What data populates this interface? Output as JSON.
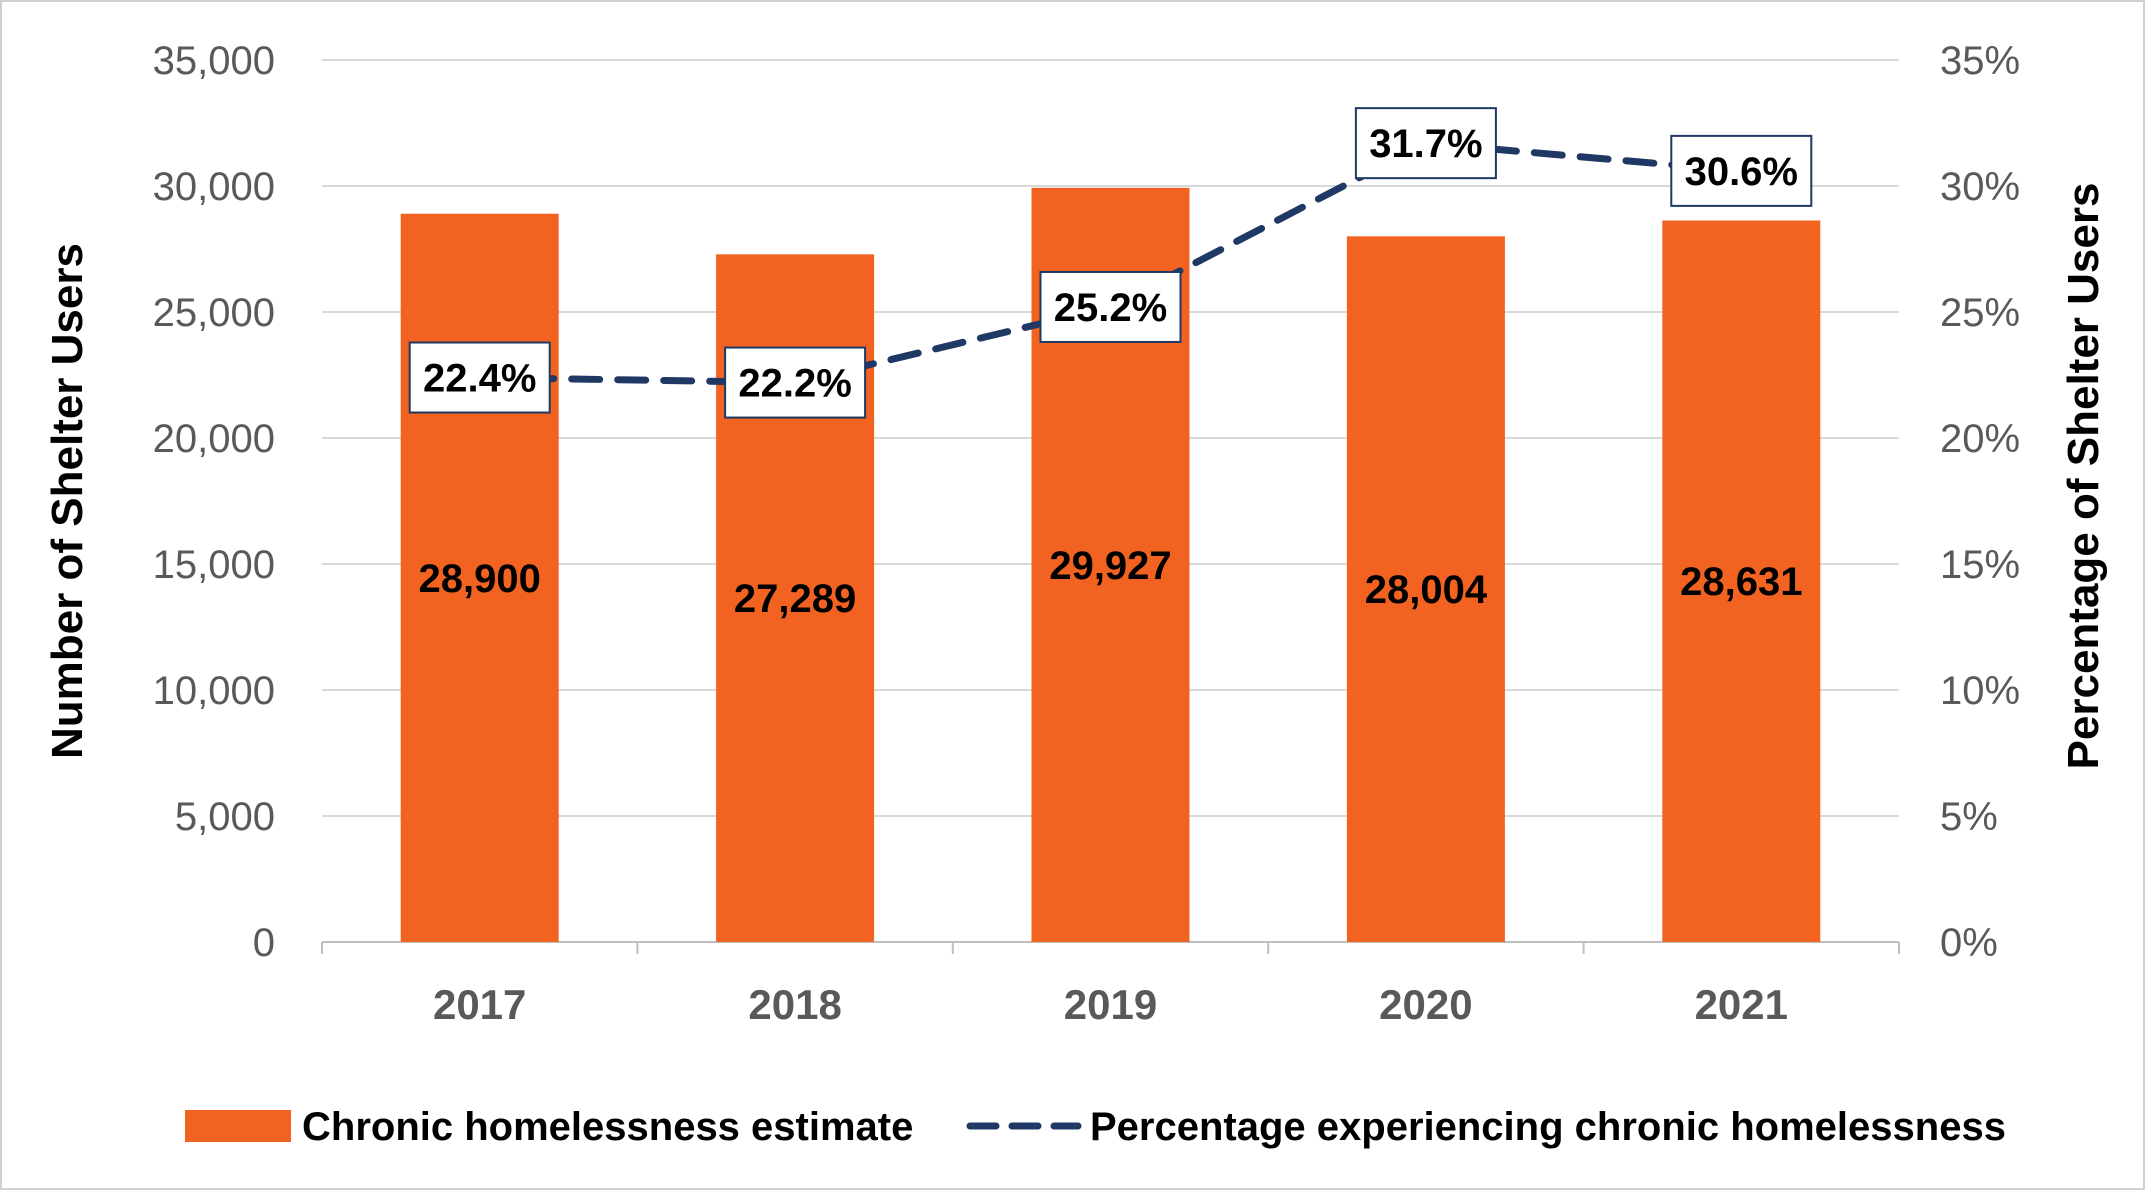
{
  "chart_data": {
    "type": "bar",
    "categories": [
      "2017",
      "2018",
      "2019",
      "2020",
      "2021"
    ],
    "series": [
      {
        "name": "Chronic homelessness estimate",
        "type": "bar",
        "axis": "left",
        "values": [
          28900,
          27289,
          29927,
          28004,
          28631
        ],
        "value_labels": [
          "28,900",
          "27,289",
          "29,927",
          "28,004",
          "28,631"
        ],
        "color": "#F26322"
      },
      {
        "name": "Percentage experiencing chronic homelessness",
        "type": "line",
        "style": "dashed",
        "axis": "right",
        "values": [
          22.4,
          22.2,
          25.2,
          31.7,
          30.6
        ],
        "value_labels": [
          "22.4%",
          "22.2%",
          "25.2%",
          "31.7%",
          "30.6%"
        ],
        "color": "#1F3864"
      }
    ],
    "ylabel": "Number of Shelter Users",
    "ylabel_right": "Percentage of Shelter Users",
    "ylim": [
      0,
      35000
    ],
    "ylim_right": [
      0,
      35
    ],
    "y_ticks": [
      "0",
      "5,000",
      "10,000",
      "15,000",
      "20,000",
      "25,000",
      "30,000",
      "35,000"
    ],
    "y_ticks_right": [
      "0%",
      "5%",
      "10%",
      "15%",
      "20%",
      "25%",
      "30%",
      "35%"
    ],
    "grid": true,
    "legend_position": "bottom"
  }
}
